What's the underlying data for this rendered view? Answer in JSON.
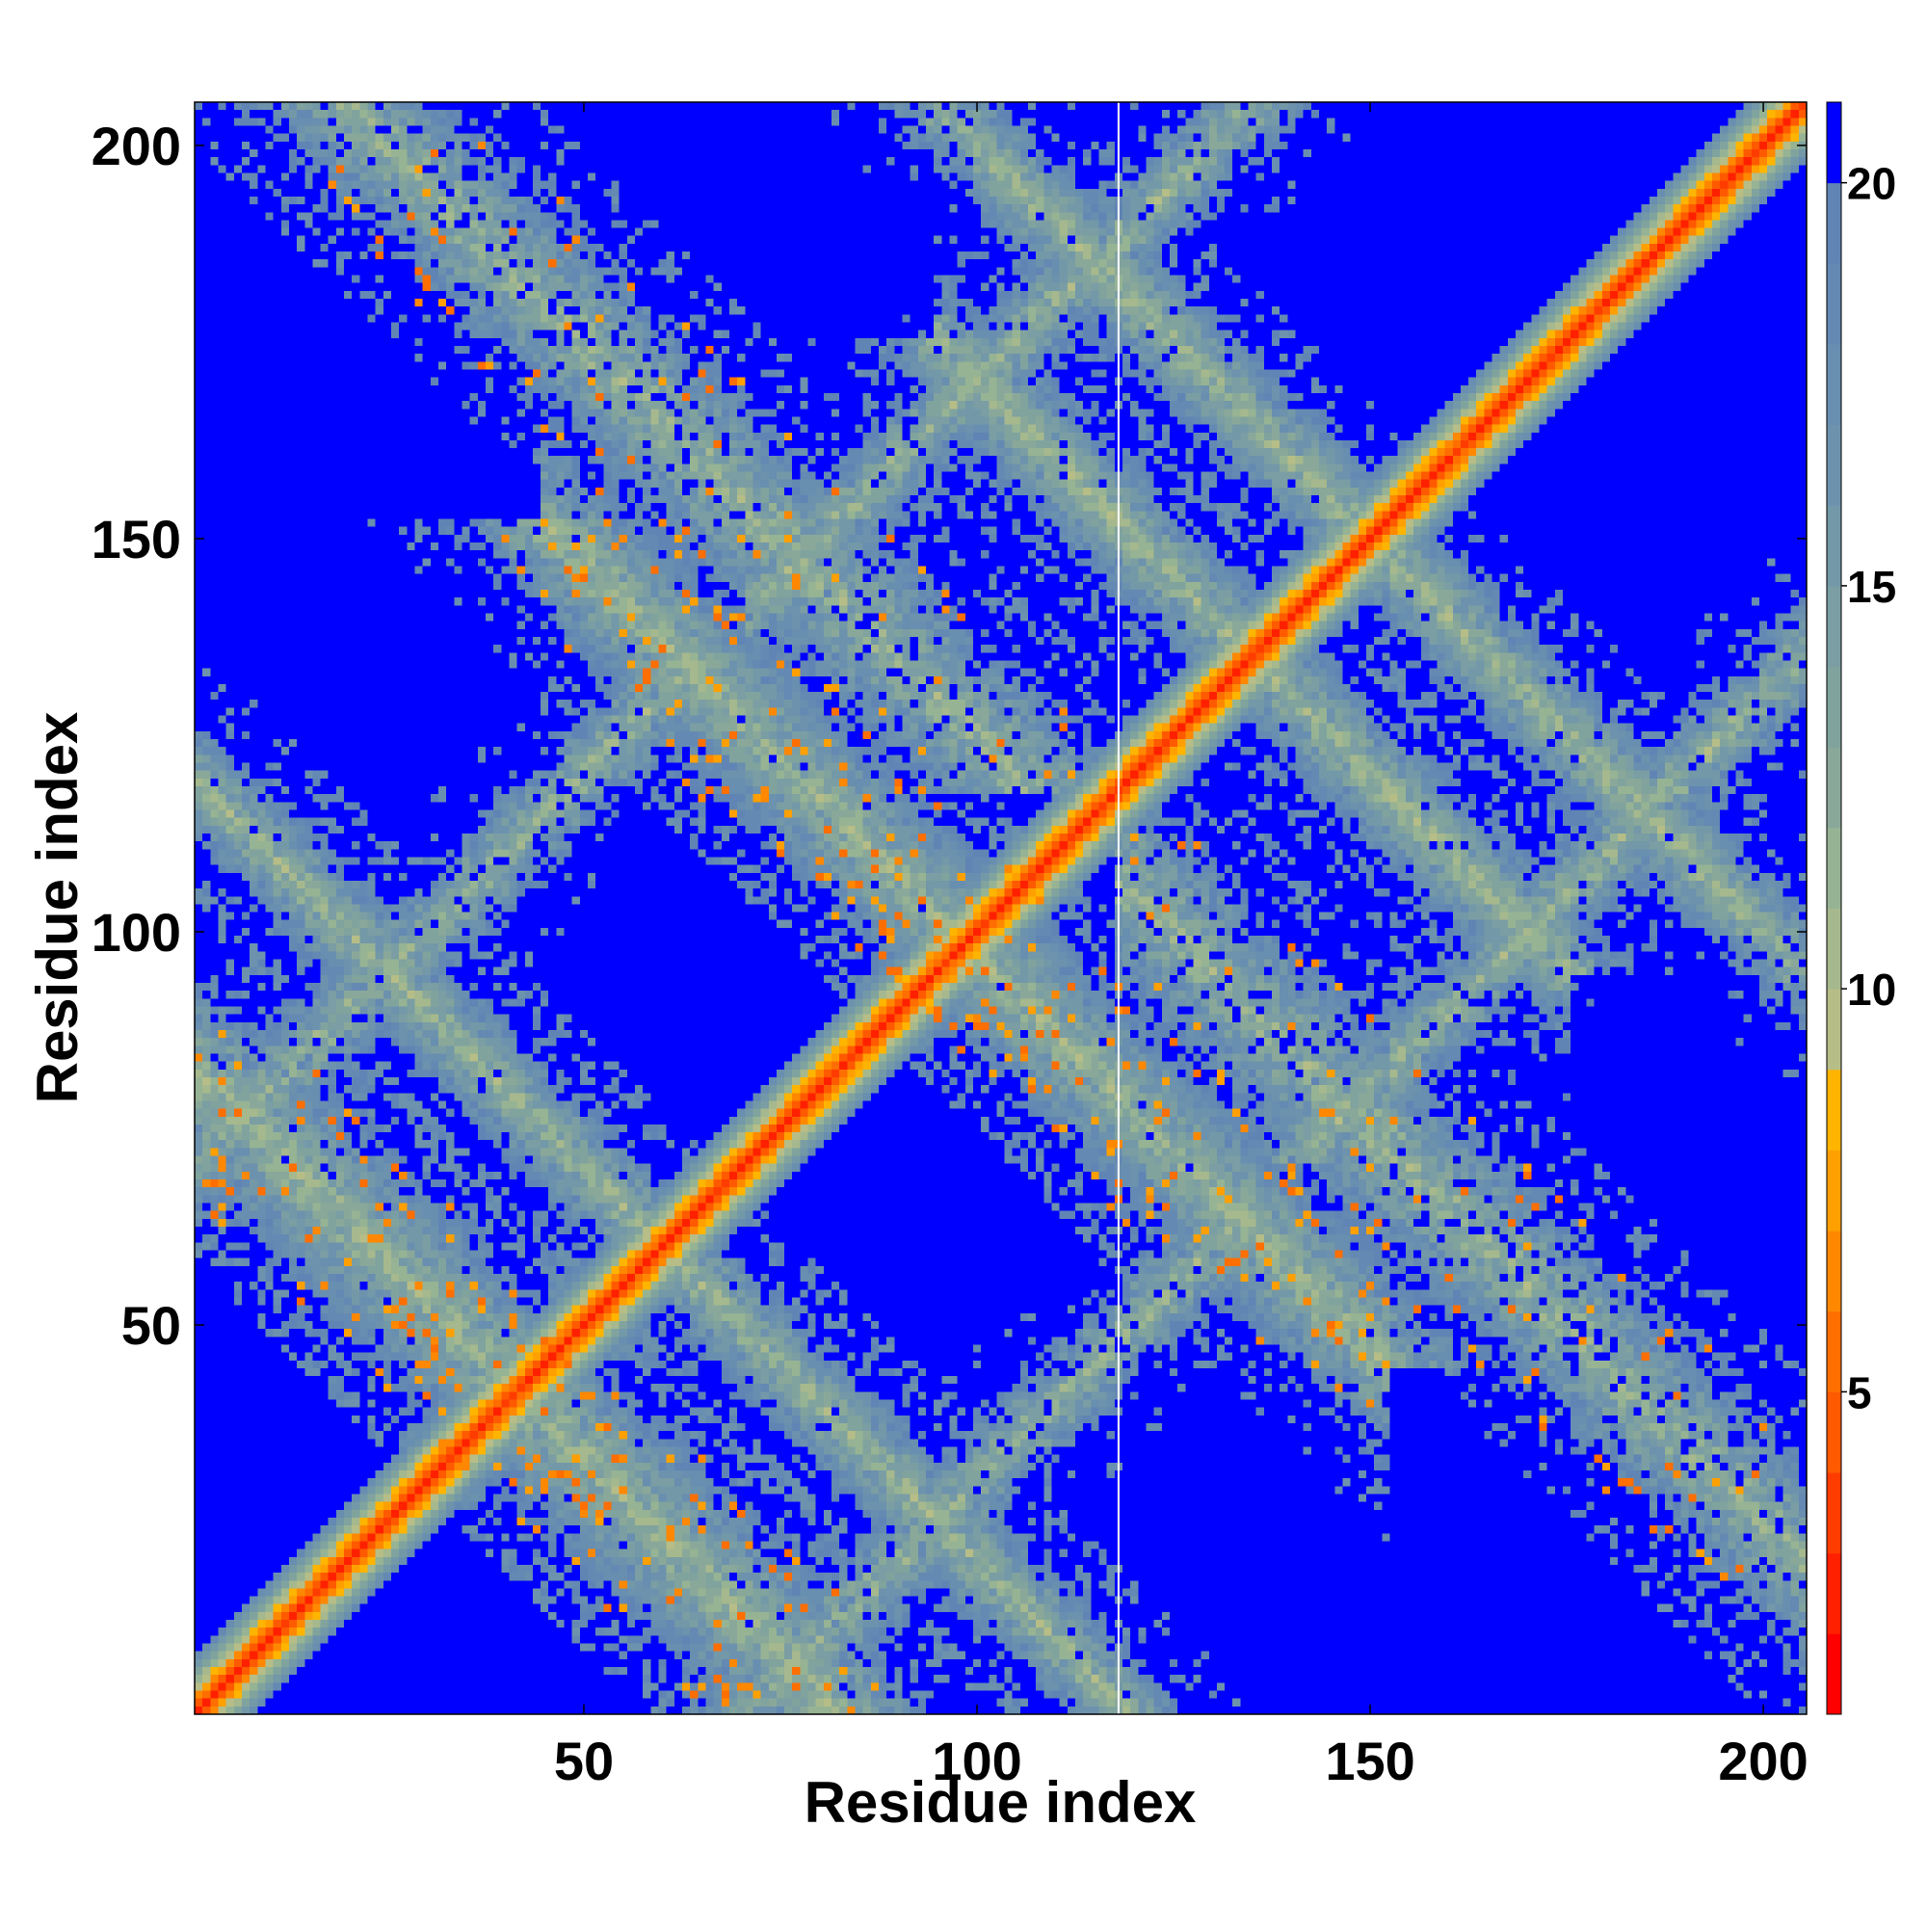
{
  "chart_data": {
    "type": "heatmap",
    "title": "",
    "xlabel": "Residue index",
    "ylabel": "Residue index",
    "xlim": [
      1,
      205
    ],
    "ylim": [
      1,
      205
    ],
    "xticks": [
      50,
      100,
      150,
      200
    ],
    "yticks": [
      50,
      100,
      150,
      200
    ],
    "n_residues": 205,
    "gap_at_residue": 118,
    "colorbar": {
      "min": 1,
      "max": 21,
      "ticks": [
        5,
        10,
        15,
        20
      ],
      "levels": [
        {
          "from": 1,
          "to": 2,
          "color": "#ff0000"
        },
        {
          "from": 2,
          "to": 3,
          "color": "#ff2000"
        },
        {
          "from": 3,
          "to": 4,
          "color": "#ff3c00"
        },
        {
          "from": 4,
          "to": 5,
          "color": "#ff5a00"
        },
        {
          "from": 5,
          "to": 6,
          "color": "#ff6e00"
        },
        {
          "from": 6,
          "to": 7,
          "color": "#ff8800"
        },
        {
          "from": 7,
          "to": 8,
          "color": "#ffa000"
        },
        {
          "from": 8,
          "to": 9,
          "color": "#ffb400"
        },
        {
          "from": 9,
          "to": 10,
          "color": "#b6bd87"
        },
        {
          "from": 10,
          "to": 11,
          "color": "#a6b88d"
        },
        {
          "from": 11,
          "to": 12,
          "color": "#96b394"
        },
        {
          "from": 12,
          "to": 13,
          "color": "#8aa89a"
        },
        {
          "from": 13,
          "to": 14,
          "color": "#80a39e"
        },
        {
          "from": 14,
          "to": 15,
          "color": "#7a9ea3"
        },
        {
          "from": 15,
          "to": 16,
          "color": "#7398a8"
        },
        {
          "from": 16,
          "to": 17,
          "color": "#6d92ad"
        },
        {
          "from": 17,
          "to": 18,
          "color": "#688eb0"
        },
        {
          "from": 18,
          "to": 19,
          "color": "#6489b2"
        },
        {
          "from": 19,
          "to": 20,
          "color": "#6085b4"
        },
        {
          "from": 20,
          "to": 21,
          "color": "#0000ff"
        }
      ]
    },
    "diagonal_band": {
      "core_value": 2,
      "half_width": 7
    },
    "contact_bands": [
      {
        "type": "anti",
        "sum": 83,
        "from": 1,
        "to": 82,
        "strength": 1.0
      },
      {
        "type": "anti",
        "sum": 225,
        "from": 118,
        "to": 205,
        "strength": 1.0
      },
      {
        "type": "anti",
        "sum": 197,
        "from": 45,
        "to": 152,
        "strength": 0.85
      },
      {
        "type": "anti",
        "sum": 270,
        "from": 95,
        "to": 175,
        "strength": 0.55
      },
      {
        "type": "anti",
        "sum": 120,
        "from": 1,
        "to": 120,
        "strength": 0.45
      },
      {
        "type": "anti",
        "sum": 300,
        "from": 100,
        "to": 205,
        "strength": 0.5
      },
      {
        "type": "parallel",
        "offset": 70,
        "from": 1,
        "to": 135,
        "strength": 0.45
      },
      {
        "type": "parallel",
        "offset": -70,
        "from": 71,
        "to": 205,
        "strength": 0.45
      }
    ]
  }
}
